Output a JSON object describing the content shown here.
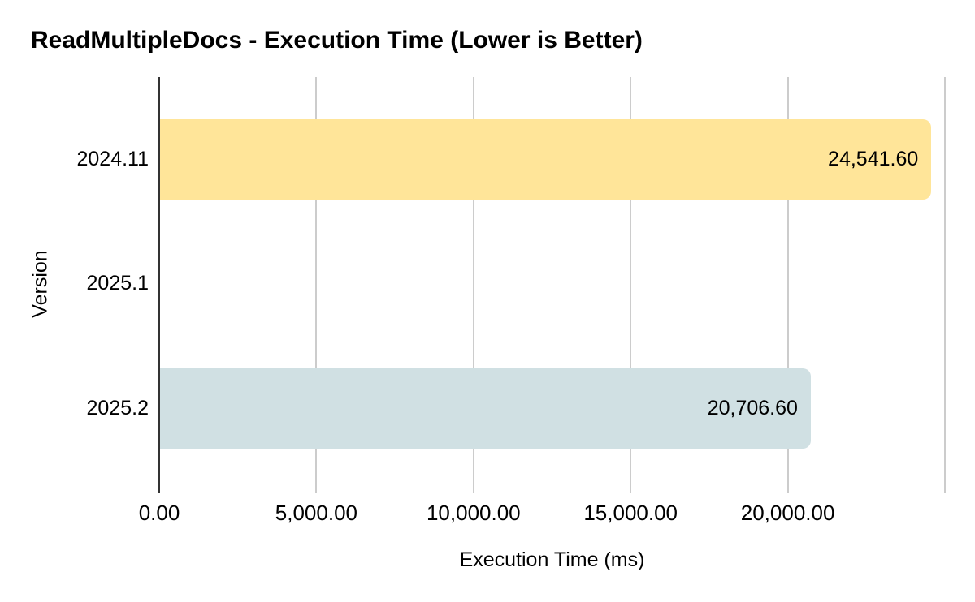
{
  "page": {
    "background": "#ffffff"
  },
  "chart_data": {
    "type": "bar",
    "orientation": "horizontal",
    "title": "ReadMultipleDocs - Execution Time (Lower is Better)",
    "xlabel": "Execution Time (ms)",
    "ylabel": "Version",
    "categories": [
      "2024.11",
      "2025.1",
      "2025.2"
    ],
    "values": [
      24541.6,
      0,
      20706.6
    ],
    "value_labels": [
      "24,541.60",
      "",
      "20,706.60"
    ],
    "bar_colors": [
      "#ffe599",
      null,
      "#d0e0e3"
    ],
    "xlim": [
      0,
      25000
    ],
    "x_ticks": [
      {
        "value": 0,
        "label": "0.00"
      },
      {
        "value": 5000,
        "label": "5,000.00"
      },
      {
        "value": 10000,
        "label": "10,000.00"
      },
      {
        "value": 15000,
        "label": "15,000.00"
      },
      {
        "value": 20000,
        "label": "20,000.00"
      },
      {
        "value": 25000,
        "label": ""
      }
    ],
    "grid": true,
    "legend": false,
    "colors": {
      "axis_line": "#333333",
      "gridline": "#cccccc",
      "text": "#000000"
    }
  }
}
